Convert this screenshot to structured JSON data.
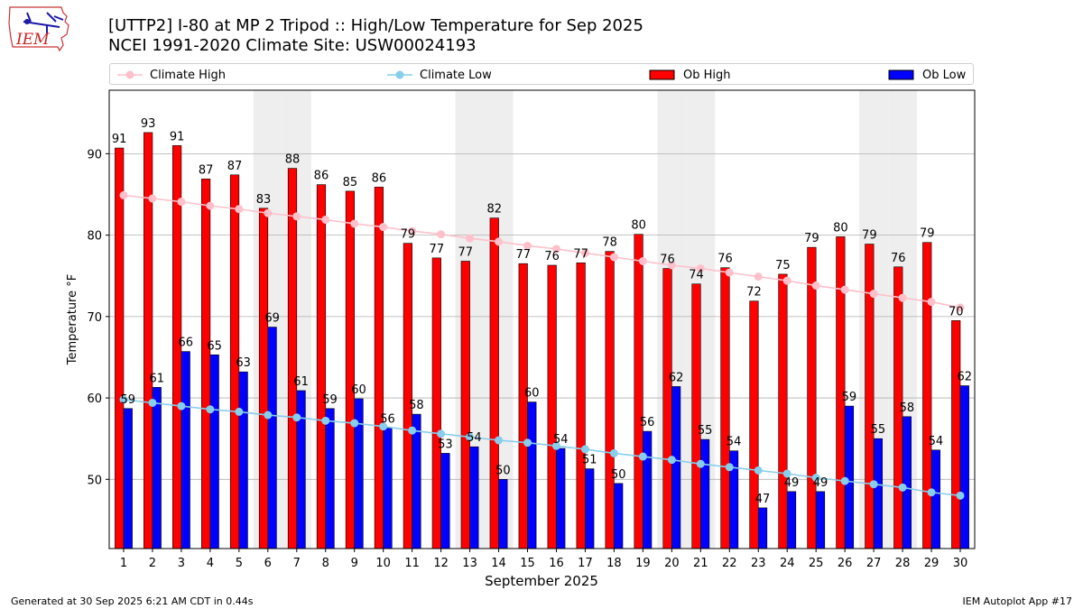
{
  "header": {
    "title_line1": "[UTTP2] I-80 at MP 2 Tripod  :: High/Low Temperature for Sep 2025",
    "title_line2": "NCEI 1991-2020 Climate Site: USW00024193",
    "logo_text": "IEM"
  },
  "legend": {
    "climate_high": "Climate High",
    "climate_low": "Climate Low",
    "ob_high": "Ob High",
    "ob_low": "Ob Low"
  },
  "footer": {
    "left": "Generated at 30 Sep 2025 6:21 AM CDT in 0.44s",
    "right": "IEM Autoplot App #17"
  },
  "colors": {
    "ob_high": "#ff0000",
    "ob_low": "#0000ff",
    "climate_high": "#ffc0cb",
    "climate_low": "#87ceeb",
    "weekend_band": "#eeeeee",
    "grid": "#b0b0b0"
  },
  "chart_data": {
    "type": "bar",
    "xlabel": "September 2025",
    "ylabel": "Temperature °F",
    "ylim": [
      41.5,
      97.8
    ],
    "yticks": [
      50,
      60,
      70,
      80,
      90
    ],
    "grid": "horizontal",
    "legend_position": "top",
    "weekend_days": [
      6,
      7,
      13,
      14,
      20,
      21,
      27,
      28
    ],
    "categories": [
      1,
      2,
      3,
      4,
      5,
      6,
      7,
      8,
      9,
      10,
      11,
      12,
      13,
      14,
      15,
      16,
      17,
      18,
      19,
      20,
      21,
      22,
      23,
      24,
      25,
      26,
      27,
      28,
      29,
      30
    ],
    "series": [
      {
        "name": "Ob High",
        "kind": "bar",
        "values": [
          91,
          93,
          91,
          87,
          87,
          83,
          88,
          86,
          85,
          86,
          79,
          77,
          77,
          82,
          77,
          76,
          77,
          78,
          80,
          76,
          74,
          76,
          72,
          75,
          79,
          80,
          79,
          76,
          79,
          70
        ],
        "plotted": [
          90.7,
          92.6,
          91.0,
          86.9,
          87.4,
          83.3,
          88.2,
          86.2,
          85.4,
          85.9,
          79.0,
          77.2,
          76.8,
          82.1,
          76.5,
          76.3,
          76.6,
          78.0,
          80.1,
          75.9,
          74.0,
          76.0,
          71.9,
          75.2,
          78.5,
          79.8,
          78.9,
          76.1,
          79.1,
          69.5
        ]
      },
      {
        "name": "Ob Low",
        "kind": "bar",
        "values": [
          59,
          61,
          66,
          65,
          63,
          69,
          61,
          59,
          60,
          56,
          58,
          53,
          54,
          50,
          60,
          54,
          51,
          50,
          56,
          62,
          55,
          54,
          47,
          49,
          49,
          59,
          55,
          58,
          54,
          62
        ],
        "plotted": [
          58.7,
          61.3,
          65.7,
          65.3,
          63.2,
          68.7,
          60.9,
          58.7,
          59.9,
          56.3,
          58.0,
          53.2,
          54.0,
          50.0,
          59.5,
          53.8,
          51.3,
          49.5,
          55.9,
          61.4,
          54.9,
          53.5,
          46.5,
          48.5,
          48.5,
          59.0,
          55.0,
          57.7,
          53.6,
          61.5
        ]
      },
      {
        "name": "Climate High",
        "kind": "line",
        "values": [
          84.9,
          84.5,
          84.1,
          83.6,
          83.2,
          82.7,
          82.3,
          81.9,
          81.4,
          81.0,
          80.5,
          80.1,
          79.6,
          79.2,
          78.7,
          78.3,
          77.8,
          77.3,
          76.8,
          76.3,
          75.9,
          75.4,
          74.9,
          74.4,
          73.8,
          73.3,
          72.8,
          72.3,
          71.8,
          71.1
        ]
      },
      {
        "name": "Climate Low",
        "kind": "line",
        "values": [
          59.8,
          59.4,
          59.0,
          58.6,
          58.3,
          57.9,
          57.6,
          57.2,
          56.9,
          56.5,
          56.0,
          55.6,
          55.2,
          54.8,
          54.5,
          54.1,
          53.7,
          53.2,
          52.8,
          52.4,
          51.9,
          51.5,
          51.1,
          50.7,
          50.2,
          49.8,
          49.4,
          49.0,
          48.4,
          48.0
        ]
      }
    ]
  }
}
